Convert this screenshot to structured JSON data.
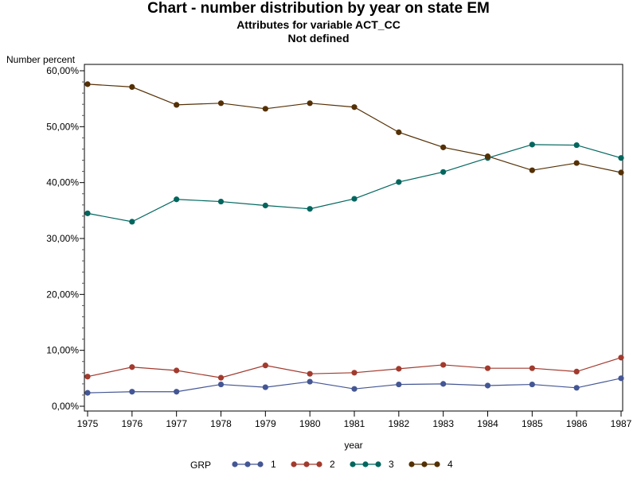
{
  "chart_data": {
    "type": "line",
    "title": "Chart - number distribution by year on state EM",
    "subtitle": "Attributes for variable ACT_CC",
    "subtitle2": "Not defined",
    "xlabel": "year",
    "ylabel": "Number percent",
    "x": [
      1975,
      1976,
      1977,
      1978,
      1979,
      1980,
      1981,
      1982,
      1983,
      1984,
      1985,
      1986,
      1987
    ],
    "xlim": [
      1975,
      1987
    ],
    "ylim": [
      0,
      60
    ],
    "y_ticks": [
      0,
      10,
      20,
      30,
      40,
      50,
      60
    ],
    "y_tick_labels": [
      "0,00%",
      "10,00%",
      "20,00%",
      "30,00%",
      "40,00%",
      "50,00%",
      "60,00%"
    ],
    "legend_title": "GRP",
    "legend_position": "bottom",
    "grid": false,
    "series": [
      {
        "name": "1",
        "color": "#445694",
        "values": [
          2.4,
          2.6,
          2.6,
          3.9,
          3.4,
          4.4,
          3.1,
          3.9,
          4.0,
          3.7,
          3.9,
          3.3,
          5.0
        ]
      },
      {
        "name": "2",
        "color": "#A23A2E",
        "values": [
          5.3,
          7.0,
          6.4,
          5.1,
          7.3,
          5.8,
          6.0,
          6.7,
          7.4,
          6.8,
          6.8,
          6.2,
          8.7
        ]
      },
      {
        "name": "3",
        "color": "#01665E",
        "values": [
          34.5,
          33.0,
          37.0,
          36.6,
          35.9,
          35.3,
          37.1,
          40.1,
          41.9,
          44.4,
          46.8,
          46.7,
          44.4
        ]
      },
      {
        "name": "4",
        "color": "#543005",
        "values": [
          57.6,
          57.1,
          53.9,
          54.2,
          53.2,
          54.2,
          53.5,
          49.0,
          46.3,
          44.7,
          42.2,
          43.5,
          41.8
        ]
      }
    ]
  }
}
